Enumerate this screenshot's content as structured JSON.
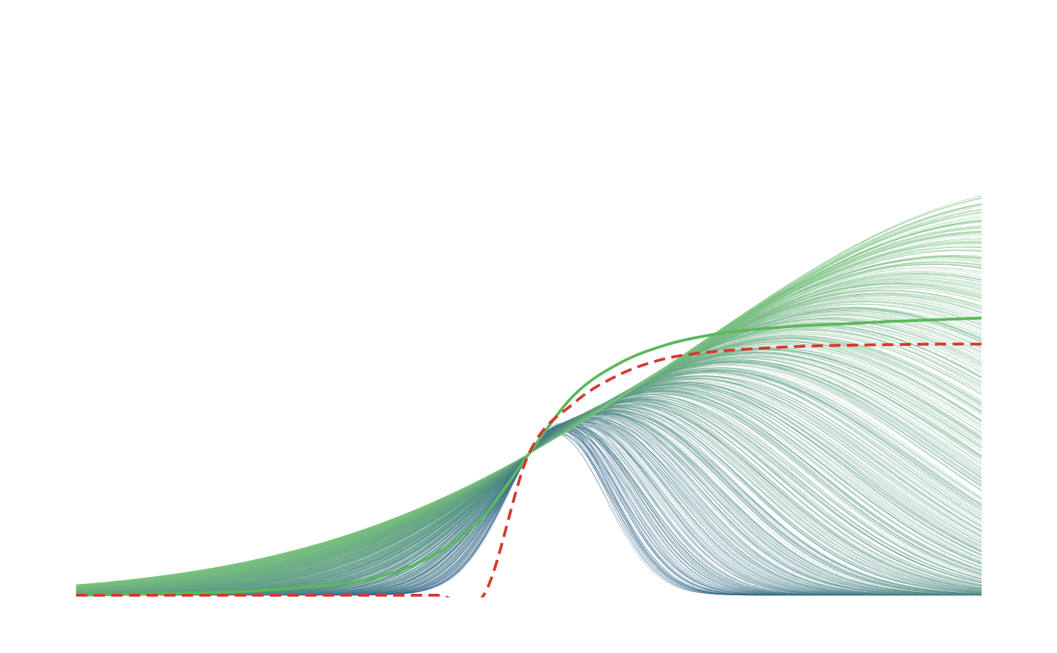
{
  "chart_data": {
    "type": "line",
    "title": "",
    "xlabel": "",
    "ylabel": "",
    "axes_visible": false,
    "grid": false,
    "legend": "none",
    "xlim": [
      -6,
      4
    ],
    "ylim": [
      0,
      1.0
    ],
    "ensemble": {
      "count": 600,
      "description_free": true,
      "center": -1,
      "amplitude": 0.25,
      "width_range": [
        0.55,
        4.0
      ],
      "color_narrow": "#2b5c8a",
      "color_wide": "#7cc47f"
    },
    "series": [
      {
        "style": "solid",
        "color": "#5cb85c",
        "x": [
          -6,
          -5,
          -4,
          -3,
          -2.5,
          -2,
          -1.5,
          -1,
          -0.5,
          0,
          0.5,
          1,
          1.5,
          2,
          2.5,
          3,
          3.5,
          4
        ],
        "y": [
          0.0,
          0.003,
          0.008,
          0.022,
          0.04,
          0.076,
          0.14,
          0.25,
          0.354,
          0.41,
          0.442,
          0.46,
          0.47,
          0.476,
          0.48,
          0.484,
          0.487,
          0.49
        ]
      },
      {
        "style": "dashed",
        "color": "#d43a2f",
        "x": [
          -6,
          -5,
          -4,
          -3,
          -2.5,
          -2,
          -1.5,
          -1,
          -0.5,
          0,
          0.5,
          1,
          1.5,
          2,
          2.5,
          3,
          3.5,
          4
        ],
        "y": [
          0.0,
          0.0,
          0.0,
          0.0,
          0.0,
          0.0,
          0.0,
          0.25,
          0.34,
          0.39,
          0.418,
          0.43,
          0.436,
          0.44,
          0.442,
          0.443,
          0.444,
          0.444
        ]
      }
    ]
  }
}
